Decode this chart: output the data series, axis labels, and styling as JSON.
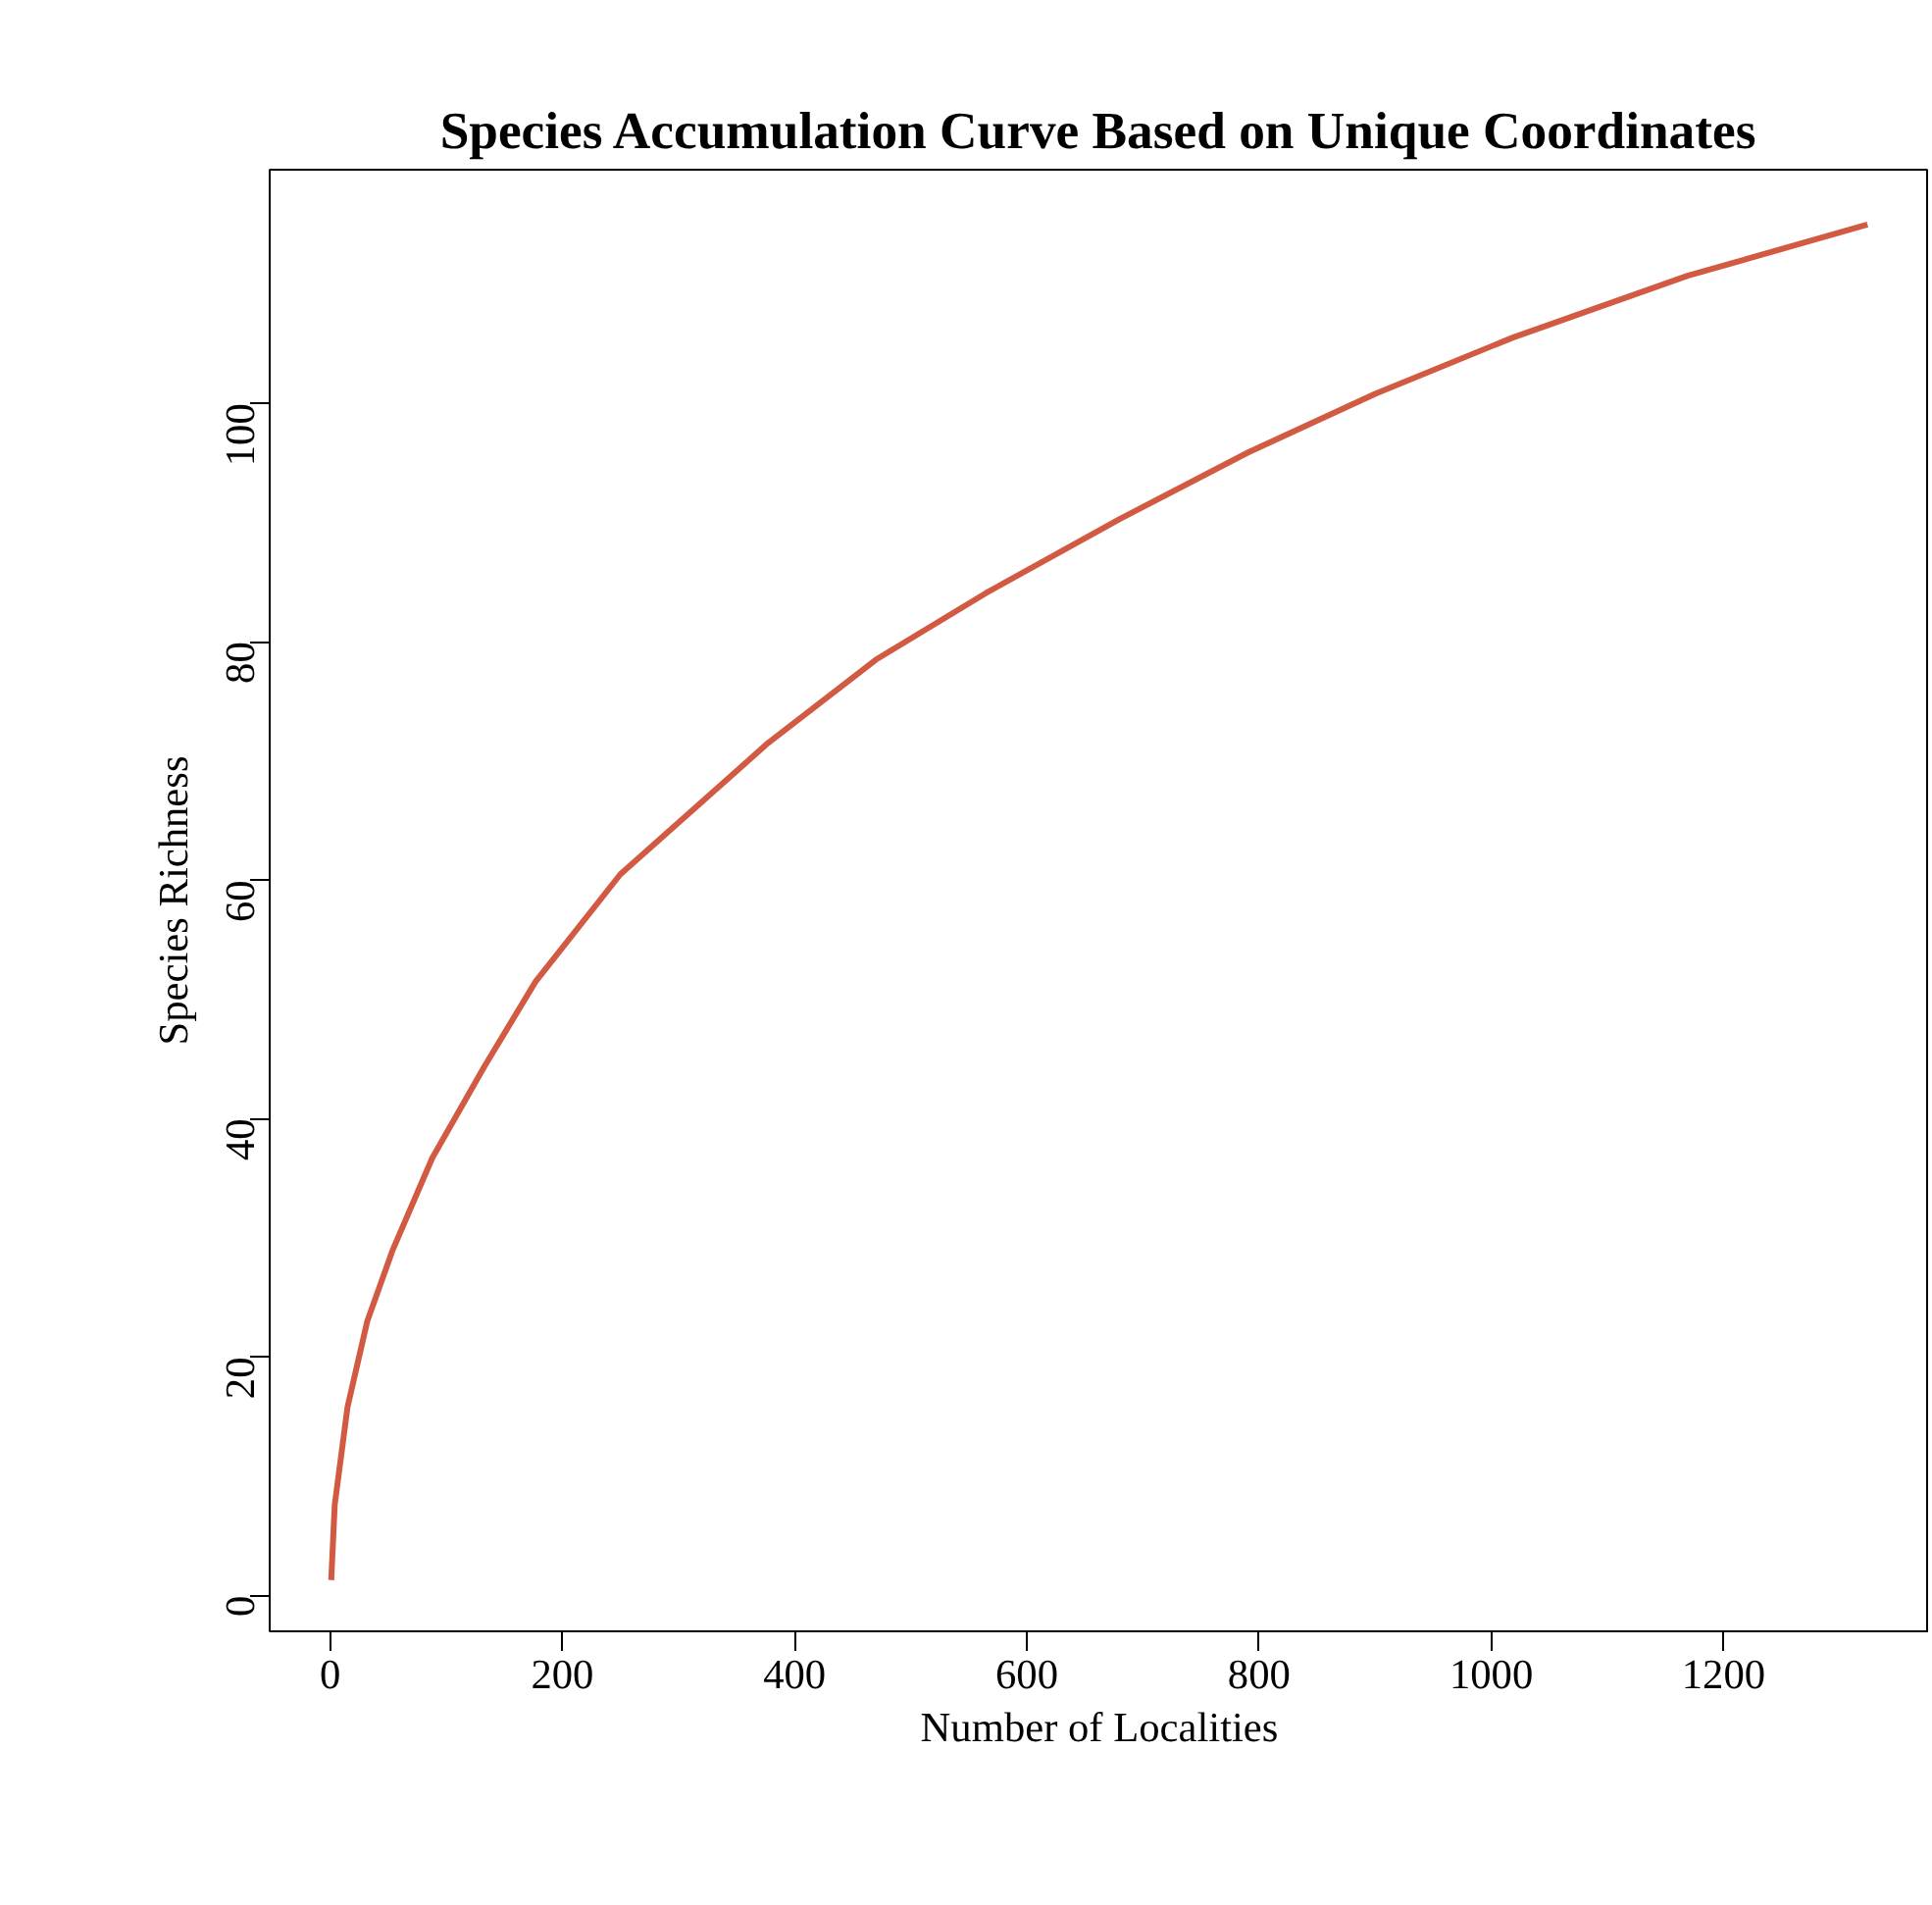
{
  "chart_data": {
    "type": "line",
    "title": "Species Accumulation Curve Based on Unique Coordinates",
    "xlabel": "Number of Localities",
    "ylabel": "Species Richness",
    "x": [
      1,
      4,
      15,
      32,
      54,
      88,
      133,
      177,
      250,
      377,
      470,
      565,
      680,
      791,
      900,
      1018,
      1169,
      1324
    ],
    "series": [
      {
        "color": "#d35a42",
        "values": [
          1.3,
          7.6,
          15.8,
          23,
          29,
          36.7,
          44.4,
          51.5,
          60.5,
          71.5,
          78.5,
          84.1,
          90.3,
          95.9,
          100.8,
          105.5,
          110.7,
          115.0
        ]
      }
    ],
    "xlim": [
      -52,
      1377
    ],
    "ylim": [
      -3,
      119.6
    ],
    "xticks": [
      0,
      200,
      400,
      600,
      800,
      1000,
      1200
    ],
    "yticks": [
      0,
      20,
      40,
      60,
      80,
      100
    ],
    "grid": false
  }
}
